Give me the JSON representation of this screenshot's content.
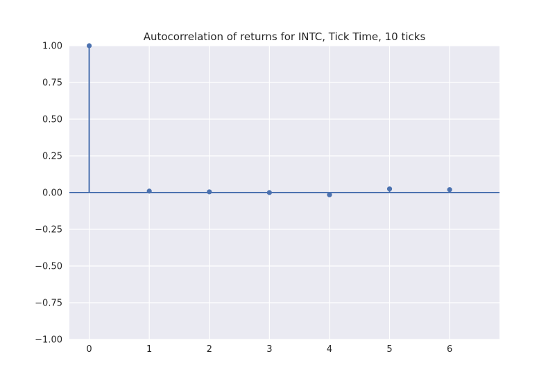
{
  "chart_data": {
    "type": "scatter",
    "title": "Autocorrelation of returns for INTC, Tick Time, 10 ticks",
    "xlabel": "",
    "ylabel": "",
    "x": [
      0,
      1,
      2,
      3,
      4,
      5,
      6
    ],
    "values": [
      1.0,
      0.01,
      0.005,
      0.0,
      -0.015,
      0.025,
      0.02
    ],
    "confidence_band": [
      -0.005,
      0.005
    ],
    "xlim": [
      -0.33,
      6.83
    ],
    "ylim": [
      -1.0,
      1.0
    ],
    "x_ticks": [
      "0",
      "1",
      "2",
      "3",
      "4",
      "5",
      "6"
    ],
    "y_ticks": [
      "−1.00",
      "−0.75",
      "−0.50",
      "−0.25",
      "0.00",
      "0.25",
      "0.50",
      "0.75",
      "1.00"
    ],
    "grid": true,
    "colors": {
      "background": "#EAEAF2",
      "grid": "#FFFFFF",
      "series": "#4C72B0",
      "band": "#4C72B0"
    }
  }
}
